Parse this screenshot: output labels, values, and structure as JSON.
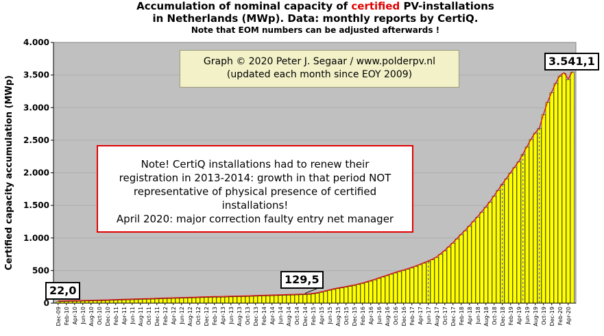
{
  "title": {
    "line1_prefix": "Accumulation  of nominal  capacity of ",
    "line1_highlight": "certified",
    "line1_suffix": " PV-installations",
    "line2": "in Netherlands (MWp). Data: monthly  reports by CertiQ.",
    "line3": "Note that EOM numbers can be adjusted afterwards  !"
  },
  "copyright": {
    "line1": "Graph © 2020 Peter J. Segaar / www.polderpv.nl",
    "line2": "(updated each month since EOY 2009)"
  },
  "note": {
    "line1": "Note! CertiQ installations had to renew their",
    "line2": "registration in 2013-2014:  growth in that period NOT",
    "line3": "representative of physical presence of certified",
    "line4": "installations!",
    "line5": "April 2020:  major correction faulty entry net manager"
  },
  "callouts": {
    "first": "22,0",
    "mid": "129,5",
    "last": "3.541,1"
  },
  "colors": {
    "plot_bg": "#c0c0c0",
    "bar_fill": "#ffff00",
    "bar_stroke": "#000000",
    "trend": "#e00000",
    "marker": "#1f3fd0"
  },
  "chart_data": {
    "type": "bar",
    "title": "Accumulation of nominal capacity of certified PV-installations in Netherlands (MWp). Data: monthly reports by CertiQ.",
    "xlabel": "",
    "ylabel": "Certified capacity accumulation (MWp)",
    "ylim": [
      0,
      4000
    ],
    "yticks": [
      0,
      500,
      1000,
      1500,
      2000,
      2500,
      3000,
      3500,
      4000
    ],
    "ytick_labels": [
      "0",
      "500",
      "1.000",
      "1.500",
      "2.000",
      "2.500",
      "3.000",
      "3.500",
      "4.000"
    ],
    "xtick_labels": [
      "Dec-09",
      "Feb-10",
      "Apr-10",
      "Jun-10",
      "Aug-10",
      "Oct-10",
      "Dec-10",
      "Feb-11",
      "Apr-11",
      "Jun-11",
      "Aug-11",
      "Oct-11",
      "Dec-11",
      "Feb-12",
      "Apr-12",
      "Jun-12",
      "Aug-12",
      "Oct-12",
      "Dec-12",
      "Feb-13",
      "Apr-13",
      "Jun-13",
      "Aug-13",
      "Oct-13",
      "Dec-13",
      "Feb-14",
      "Apr-14",
      "Jun-14",
      "Aug-14",
      "Oct-14",
      "Dec-14",
      "Feb-15",
      "Apr-15",
      "Jun-15",
      "Aug-15",
      "Oct-15",
      "Dec-15",
      "Feb-16",
      "Apr-16",
      "Jun-16",
      "Aug-16",
      "Oct-16",
      "Dec-16",
      "Feb-17",
      "Apr-17",
      "Jun-17",
      "Aug-17",
      "Oct-17",
      "Dec-17",
      "Feb-18",
      "Apr-18",
      "Jun-18",
      "Aug-18",
      "Oct-18",
      "Dec-18",
      "Feb-19",
      "Apr-19",
      "Jun-19",
      "Aug-19",
      "Oct-19",
      "Dec-19",
      "Feb-20",
      "Apr-20"
    ],
    "series": [
      {
        "name": "Certified capacity (MWp)",
        "values": [
          22.0,
          23,
          24,
          26,
          27,
          29,
          31,
          32,
          34,
          35,
          37,
          38,
          40,
          42,
          44,
          46,
          48,
          50,
          52,
          54,
          56,
          58,
          60,
          62,
          64,
          66,
          68,
          70,
          72,
          74,
          76,
          77,
          79,
          81,
          83,
          85,
          87,
          88,
          90,
          91,
          92,
          94,
          96,
          98,
          99,
          100,
          102,
          104,
          106,
          108,
          110,
          112,
          114,
          116,
          118,
          120,
          122,
          124,
          126,
          128,
          129.5,
          134,
          140,
          150,
          165,
          180,
          195,
          210,
          222,
          233,
          245,
          257,
          270,
          285,
          300,
          318,
          336,
          356,
          378,
          400,
          420,
          442,
          462,
          482,
          500,
          519,
          540,
          563,
          588,
          612,
          638,
          665,
          700,
          750,
          800,
          860,
          920,
          985,
          1050,
          1110,
          1180,
          1250,
          1320,
          1395,
          1470,
          1550,
          1640,
          1730,
          1820,
          1905,
          1995,
          2080,
          2165,
          2280,
          2395,
          2510,
          2605,
          2680,
          2890,
          3080,
          3230,
          3370,
          3480,
          3525,
          3430,
          3541.1
        ]
      }
    ],
    "annotations": [
      "22,0",
      "129,5",
      "3.541,1"
    ]
  }
}
